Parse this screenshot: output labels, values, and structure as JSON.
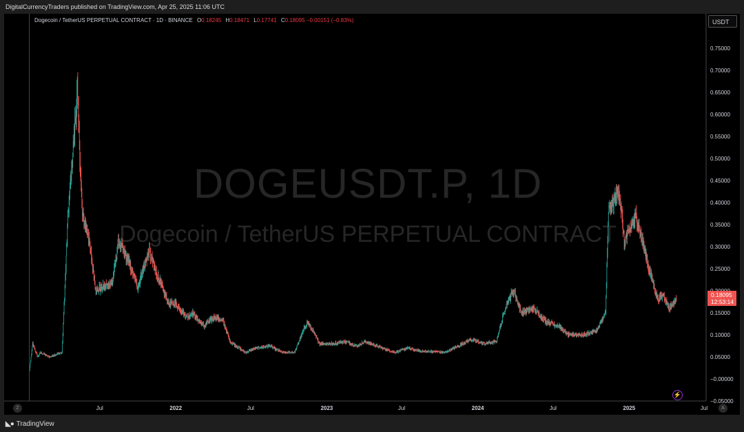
{
  "header": {
    "published": "DigitalCurrencyTraders published on TradingView.com, Apr 25, 2025 11:06 UTC"
  },
  "legend": {
    "symbol_desc": "Dogecoin / TetherUS PERPETUAL CONTRACT · 1D · BINANCE",
    "o_label": "O",
    "o_value": "0.18245",
    "h_label": "H",
    "h_value": "0.18471",
    "l_label": "L",
    "l_value": "0.17741",
    "c_label": "C",
    "c_value": "0.18095",
    "change": "−0.00151 (−0.83%)"
  },
  "watermark": {
    "line1": "DOGEUSDT.P, 1D",
    "line2": "Dogecoin / TetherUS PERPETUAL CONTRACT"
  },
  "price_axis": {
    "unit": "USDT"
  },
  "last_price": {
    "value": "0.18095",
    "countdown": "12:53:14"
  },
  "footer": {
    "brand": "TradingView"
  },
  "corners": {
    "left": "Z",
    "right": "A"
  },
  "colors": {
    "up": "#26a69a",
    "down": "#ef5350",
    "background": "#000000",
    "axis_text": "#d1d4dc"
  },
  "chart_data": {
    "type": "line",
    "style": "candlestick",
    "interval": "1D",
    "ylim": [
      -0.05,
      0.8
    ],
    "yticks": [
      "−0.05000",
      "−0.00000",
      "0.05000",
      "0.10000",
      "0.15000",
      "0.20000",
      "0.25000",
      "0.30000",
      "0.35000",
      "0.40000",
      "0.45000",
      "0.50000",
      "0.55000",
      "0.60000",
      "0.65000",
      "0.70000",
      "0.75000"
    ],
    "xlim": [
      "2021-01-11",
      "2025-07-06"
    ],
    "xticks": [
      {
        "date": "2021-07-01",
        "label": "Jul"
      },
      {
        "date": "2022-01-01",
        "label": "2022"
      },
      {
        "date": "2022-07-01",
        "label": "Jul"
      },
      {
        "date": "2023-01-01",
        "label": "2023"
      },
      {
        "date": "2023-07-01",
        "label": "Jul"
      },
      {
        "date": "2024-01-01",
        "label": "2024"
      },
      {
        "date": "2024-07-01",
        "label": "Jul"
      },
      {
        "date": "2025-01-01",
        "label": "2025"
      },
      {
        "date": "2025-07-01",
        "label": "Jul"
      }
    ],
    "x": [
      "2021-01-11",
      "2021-01-20",
      "2021-02-01",
      "2021-02-08",
      "2021-03-01",
      "2021-04-01",
      "2021-04-16",
      "2021-05-08",
      "2021-05-20",
      "2021-06-03",
      "2021-06-22",
      "2021-08-01",
      "2021-08-15",
      "2021-09-07",
      "2021-10-01",
      "2021-10-28",
      "2021-11-15",
      "2021-12-15",
      "2022-01-01",
      "2022-01-28",
      "2022-02-10",
      "2022-03-10",
      "2022-04-05",
      "2022-04-26",
      "2022-05-12",
      "2022-06-18",
      "2022-07-15",
      "2022-08-16",
      "2022-09-15",
      "2022-10-15",
      "2022-11-01",
      "2022-11-15",
      "2022-12-15",
      "2023-01-15",
      "2023-02-15",
      "2023-03-15",
      "2023-04-04",
      "2023-05-01",
      "2023-06-15",
      "2023-07-15",
      "2023-08-15",
      "2023-09-15",
      "2023-10-15",
      "2023-11-15",
      "2023-12-15",
      "2024-01-15",
      "2024-02-15",
      "2024-03-10",
      "2024-03-28",
      "2024-04-15",
      "2024-05-15",
      "2024-06-15",
      "2024-07-15",
      "2024-08-05",
      "2024-09-15",
      "2024-10-15",
      "2024-11-05",
      "2024-11-12",
      "2024-12-08",
      "2024-12-20",
      "2025-01-18",
      "2025-02-03",
      "2025-02-15",
      "2025-03-11",
      "2025-03-25",
      "2025-04-07",
      "2025-04-25"
    ],
    "y": [
      0.01,
      0.08,
      0.05,
      0.06,
      0.05,
      0.06,
      0.38,
      0.65,
      0.37,
      0.33,
      0.2,
      0.22,
      0.31,
      0.27,
      0.21,
      0.29,
      0.24,
      0.17,
      0.17,
      0.14,
      0.15,
      0.12,
      0.14,
      0.13,
      0.085,
      0.06,
      0.07,
      0.075,
      0.06,
      0.06,
      0.1,
      0.13,
      0.08,
      0.08,
      0.085,
      0.075,
      0.085,
      0.075,
      0.06,
      0.07,
      0.063,
      0.062,
      0.06,
      0.075,
      0.09,
      0.08,
      0.085,
      0.17,
      0.2,
      0.15,
      0.16,
      0.13,
      0.12,
      0.1,
      0.1,
      0.11,
      0.15,
      0.38,
      0.43,
      0.31,
      0.37,
      0.31,
      0.26,
      0.18,
      0.19,
      0.16,
      0.181
    ]
  }
}
